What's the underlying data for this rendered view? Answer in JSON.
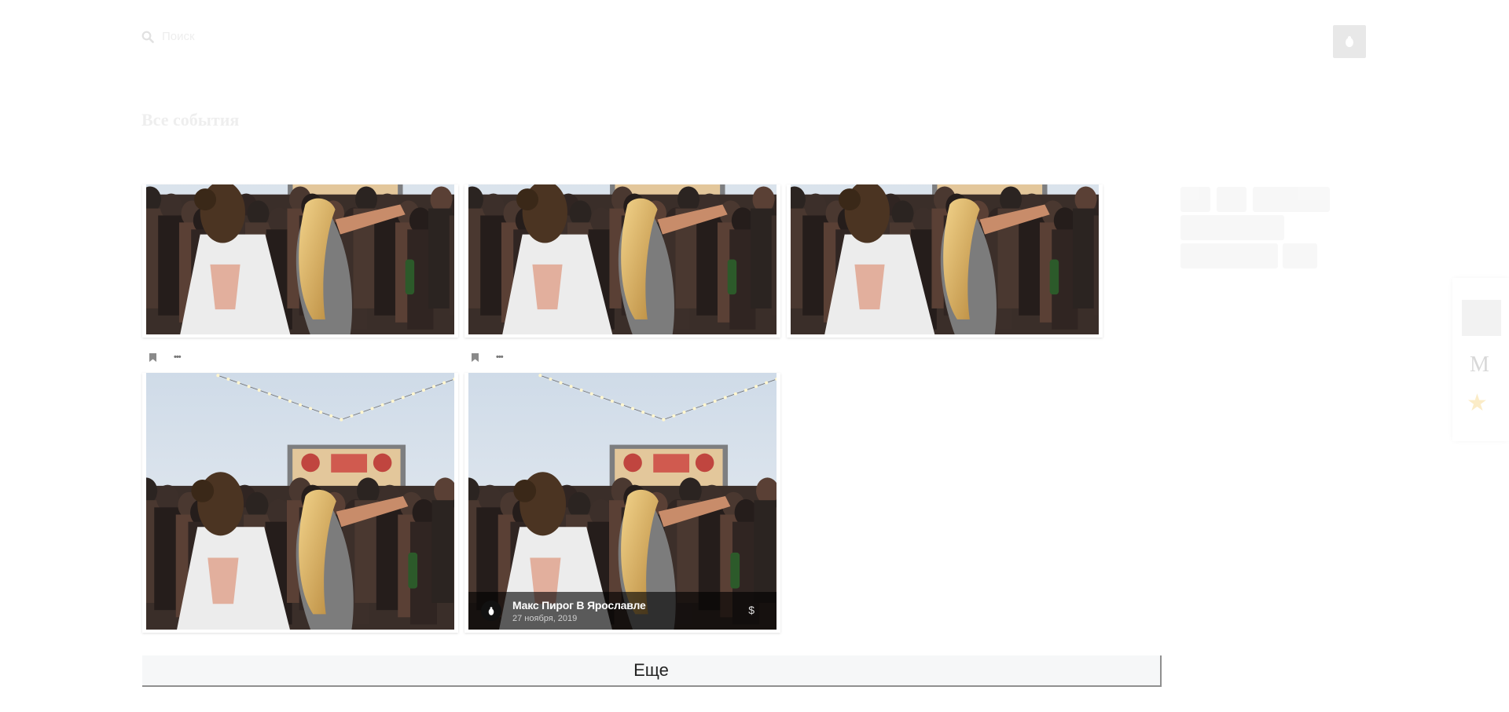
{
  "header": {
    "search_placeholder": "Поиск"
  },
  "page": {
    "title": "Все события"
  },
  "events": [
    {
      "id": "event-1"
    },
    {
      "id": "event-2"
    },
    {
      "id": "event-3"
    },
    {
      "id": "event-4"
    },
    {
      "id": "event-5",
      "title": "Макс Пирог В Ярославле",
      "date": "27 ноября, 2019",
      "price_symbol": "$"
    }
  ],
  "actions": {
    "more_label": "•••",
    "load_more_label": "Еще"
  },
  "colors": {
    "background": "#ffffff",
    "button_bg": "#f6f7f8",
    "overlay": "rgba(0,0,0,0.62)"
  }
}
